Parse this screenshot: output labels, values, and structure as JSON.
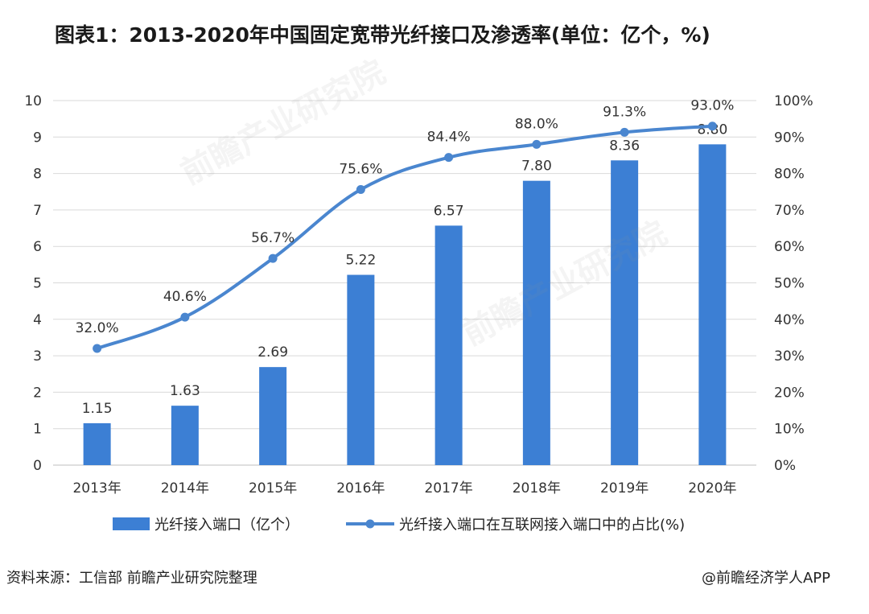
{
  "title": "图表1：2013-2020年中国固定宽带光纤接口及渗透率(单位：亿个，%)",
  "source": "资料来源：工信部 前瞻产业研究院整理",
  "brand": "@前瞻经济学人APP",
  "watermark": "前瞻产业研究院",
  "colors": {
    "bar": "#3c7fd4",
    "line": "#4a86cf",
    "grid": "#d9d9d9",
    "axis_text": "#333333"
  },
  "chart_data": {
    "type": "bar",
    "categories": [
      "2013年",
      "2014年",
      "2015年",
      "2016年",
      "2017年",
      "2018年",
      "2019年",
      "2020年"
    ],
    "series": [
      {
        "name": "光纤接入端口（亿个）",
        "type": "bar",
        "axis": "left",
        "values": [
          1.15,
          1.63,
          2.69,
          5.22,
          6.57,
          7.8,
          8.36,
          8.8
        ],
        "labels": [
          "1.15",
          "1.63",
          "2.69",
          "5.22",
          "6.57",
          "7.80",
          "8.36",
          "8.80"
        ]
      },
      {
        "name": "光纤接入端口在互联网接入端口中的占比(%)",
        "type": "line",
        "axis": "right",
        "values": [
          32.0,
          40.6,
          56.7,
          75.6,
          84.4,
          88.0,
          91.3,
          93.0
        ],
        "labels": [
          "32.0%",
          "40.6%",
          "56.7%",
          "75.6%",
          "84.4%",
          "88.0%",
          "91.3%",
          "93.0%"
        ]
      }
    ],
    "y_left": {
      "range": [
        0,
        10
      ],
      "ticks": [
        "0",
        "1",
        "2",
        "3",
        "4",
        "5",
        "6",
        "7",
        "8",
        "9",
        "10"
      ]
    },
    "y_right": {
      "range": [
        0,
        100
      ],
      "ticks": [
        "0%",
        "10%",
        "20%",
        "30%",
        "40%",
        "50%",
        "60%",
        "70%",
        "80%",
        "90%",
        "100%"
      ]
    },
    "grid": true,
    "legend_position": "bottom"
  }
}
